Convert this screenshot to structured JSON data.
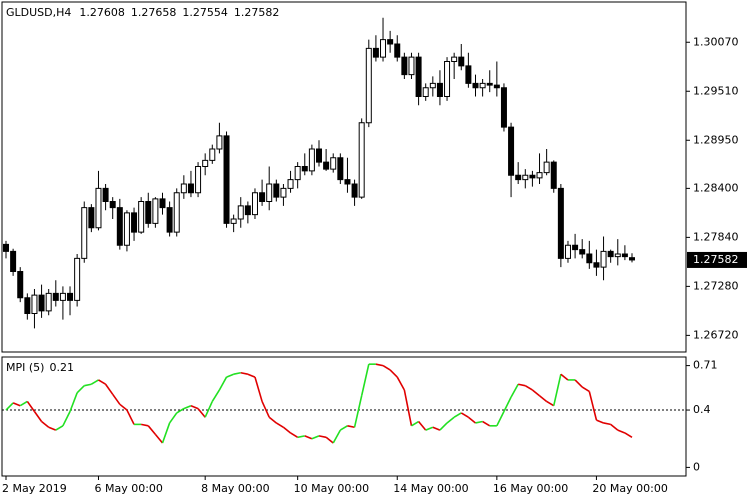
{
  "chart_data": {
    "type": "candlestick",
    "title": "GLDUSD,H4",
    "last_bar": {
      "open": 1.27608,
      "high": 1.27658,
      "low": 1.27554,
      "close": 1.27582
    },
    "categories": [
      "2 May 2019",
      null,
      null,
      null,
      null,
      null,
      null,
      null,
      null,
      null,
      null,
      null,
      null,
      "6 May 00:00",
      null,
      null,
      null,
      null,
      null,
      null,
      null,
      null,
      null,
      null,
      null,
      null,
      null,
      null,
      "8 May 00:00",
      null,
      null,
      null,
      null,
      null,
      null,
      null,
      null,
      null,
      null,
      null,
      null,
      "10 May 00:00",
      null,
      null,
      null,
      null,
      null,
      null,
      null,
      null,
      null,
      null,
      null,
      null,
      null,
      "14 May 00:00",
      null,
      null,
      null,
      null,
      null,
      null,
      null,
      null,
      null,
      null,
      null,
      null,
      null,
      "16 May 00:00",
      null,
      null,
      null,
      null,
      null,
      null,
      null,
      null,
      null,
      null,
      null,
      null,
      null,
      "20 May 00:00",
      null,
      null,
      null,
      null,
      null
    ],
    "open": [
      1.2776,
      1.2768,
      1.2745,
      1.2715,
      1.2697,
      1.2718,
      1.27,
      1.272,
      1.2712,
      1.272,
      1.2712,
      1.276,
      1.2818,
      1.2795,
      1.284,
      1.2825,
      1.2818,
      1.2775,
      1.2812,
      1.279,
      1.2825,
      1.28,
      1.2828,
      1.2818,
      1.279,
      1.2835,
      1.2845,
      1.2835,
      1.2865,
      1.2872,
      1.2885,
      1.29,
      1.28,
      1.2805,
      1.282,
      1.281,
      1.2835,
      1.2825,
      1.2845,
      1.283,
      1.284,
      1.285,
      1.2865,
      1.286,
      1.2885,
      1.287,
      1.2862,
      1.2875,
      1.285,
      1.2845,
      1.283,
      1.2915,
      1.3,
      1.299,
      1.301,
      1.3005,
      1.299,
      1.297,
      1.299,
      1.2945,
      1.2955,
      1.296,
      1.2945,
      1.2985,
      1.299,
      1.298,
      1.296,
      1.2955,
      1.296,
      1.2958,
      1.2955,
      1.291,
      1.2855,
      1.285,
      1.2855,
      1.2852,
      1.2858,
      1.287,
      1.284,
      1.276,
      1.2775,
      1.277,
      1.2765,
      1.2755,
      1.275,
      1.2768,
      1.2762,
      1.2765,
      1.27608
    ],
    "high": [
      1.278,
      1.2771,
      1.275,
      1.272,
      1.2725,
      1.273,
      1.2725,
      1.2735,
      1.2728,
      1.2728,
      1.2765,
      1.2825,
      1.2822,
      1.286,
      1.2845,
      1.283,
      1.2828,
      1.2815,
      1.2818,
      1.283,
      1.2835,
      1.283,
      1.2835,
      1.2825,
      1.284,
      1.2855,
      1.286,
      1.287,
      1.288,
      1.289,
      1.2915,
      1.2905,
      1.281,
      1.283,
      1.2825,
      1.284,
      1.285,
      1.2865,
      1.285,
      1.2845,
      1.286,
      1.287,
      1.288,
      1.289,
      1.2895,
      1.2885,
      1.288,
      1.288,
      1.2875,
      1.285,
      1.292,
      1.301,
      1.3015,
      1.3035,
      1.302,
      1.3015,
      1.2995,
      1.2995,
      1.2995,
      1.296,
      1.2968,
      1.2975,
      1.299,
      1.2995,
      1.3005,
      1.2995,
      1.297,
      1.2965,
      1.2975,
      1.2985,
      1.296,
      1.2915,
      1.287,
      1.2862,
      1.286,
      1.288,
      1.2885,
      1.2872,
      1.2845,
      1.278,
      1.2788,
      1.2782,
      1.278,
      1.277,
      1.2785,
      1.277,
      1.2782,
      1.2775,
      1.27658
    ],
    "low": [
      1.276,
      1.274,
      1.271,
      1.269,
      1.268,
      1.2692,
      1.2695,
      1.2705,
      1.269,
      1.2695,
      1.2705,
      1.2755,
      1.279,
      1.2792,
      1.2815,
      1.2805,
      1.277,
      1.2768,
      1.278,
      1.2788,
      1.2795,
      1.2795,
      1.281,
      1.2785,
      1.2785,
      1.2828,
      1.283,
      1.283,
      1.2855,
      1.2868,
      1.288,
      1.2795,
      1.279,
      1.2795,
      1.28,
      1.2805,
      1.282,
      1.2815,
      1.2825,
      1.282,
      1.2835,
      1.284,
      1.2855,
      1.2855,
      1.2865,
      1.286,
      1.2858,
      1.2845,
      1.2835,
      1.282,
      1.2828,
      1.291,
      1.2985,
      1.2985,
      1.2995,
      1.2985,
      1.2965,
      1.2965,
      1.2935,
      1.294,
      1.2945,
      1.2935,
      1.294,
      1.2965,
      1.2975,
      1.2955,
      1.2945,
      1.2945,
      1.295,
      1.2945,
      1.2905,
      1.283,
      1.2845,
      1.284,
      1.2842,
      1.2845,
      1.2855,
      1.2835,
      1.275,
      1.2755,
      1.276,
      1.276,
      1.2748,
      1.274,
      1.2735,
      1.2755,
      1.2752,
      1.2758,
      1.27554
    ],
    "close": [
      1.2768,
      1.2745,
      1.2715,
      1.2697,
      1.2718,
      1.27,
      1.272,
      1.2712,
      1.272,
      1.2712,
      1.276,
      1.2818,
      1.2795,
      1.284,
      1.2825,
      1.2818,
      1.2775,
      1.2812,
      1.279,
      1.2825,
      1.28,
      1.2828,
      1.2818,
      1.279,
      1.2835,
      1.2845,
      1.2835,
      1.2865,
      1.2872,
      1.2885,
      1.29,
      1.28,
      1.2805,
      1.282,
      1.281,
      1.2835,
      1.2825,
      1.2845,
      1.283,
      1.284,
      1.285,
      1.2865,
      1.286,
      1.2885,
      1.287,
      1.2862,
      1.2875,
      1.285,
      1.2845,
      1.283,
      1.2915,
      1.3,
      1.299,
      1.301,
      1.3005,
      1.299,
      1.297,
      1.299,
      1.2945,
      1.2955,
      1.296,
      1.2945,
      1.2985,
      1.299,
      1.298,
      1.296,
      1.2955,
      1.296,
      1.2958,
      1.2955,
      1.291,
      1.2855,
      1.285,
      1.2855,
      1.2852,
      1.2858,
      1.287,
      1.284,
      1.276,
      1.2775,
      1.277,
      1.2765,
      1.2755,
      1.275,
      1.2768,
      1.2762,
      1.2765,
      1.2762,
      1.27582
    ],
    "up_color": "#ffffff",
    "down_color": "#000000",
    "ylim": [
      1.2653,
      1.3053
    ],
    "yticks": [
      {
        "value": 1.3007,
        "label": "1.30070"
      },
      {
        "value": 1.2951,
        "label": "1.29510"
      },
      {
        "value": 1.2895,
        "label": "1.28950"
      },
      {
        "value": 1.284,
        "label": "1.28400"
      },
      {
        "value": 1.2784,
        "label": "1.27840"
      },
      {
        "value": 1.2728,
        "label": "1.27280"
      },
      {
        "value": 1.2672,
        "label": "1.26720"
      }
    ],
    "indicator": {
      "type": "line",
      "name": "MPI (5)",
      "value": 0.21,
      "values": [
        0.4,
        0.45,
        0.43,
        0.46,
        0.39,
        0.32,
        0.28,
        0.26,
        0.29,
        0.39,
        0.52,
        0.57,
        0.58,
        0.61,
        0.58,
        0.51,
        0.44,
        0.4,
        0.3,
        0.3,
        0.29,
        0.23,
        0.17,
        0.31,
        0.38,
        0.41,
        0.43,
        0.41,
        0.35,
        0.46,
        0.54,
        0.63,
        0.65,
        0.66,
        0.65,
        0.63,
        0.46,
        0.35,
        0.31,
        0.28,
        0.24,
        0.21,
        0.22,
        0.2,
        0.22,
        0.21,
        0.17,
        0.26,
        0.29,
        0.28,
        0.5,
        0.72,
        0.72,
        0.71,
        0.68,
        0.63,
        0.54,
        0.29,
        0.32,
        0.26,
        0.28,
        0.26,
        0.31,
        0.35,
        0.38,
        0.35,
        0.31,
        0.32,
        0.29,
        0.29,
        0.39,
        0.49,
        0.58,
        0.57,
        0.54,
        0.5,
        0.46,
        0.43,
        0.65,
        0.61,
        0.61,
        0.56,
        0.53,
        0.33,
        0.31,
        0.3,
        0.26,
        0.24,
        0.21
      ],
      "up_color": "#22e022",
      "down_color": "#e00000",
      "ylim": [
        -0.06,
        0.77
      ],
      "yticks": [
        0.71,
        0.4,
        0
      ],
      "level": 0.4
    }
  }
}
